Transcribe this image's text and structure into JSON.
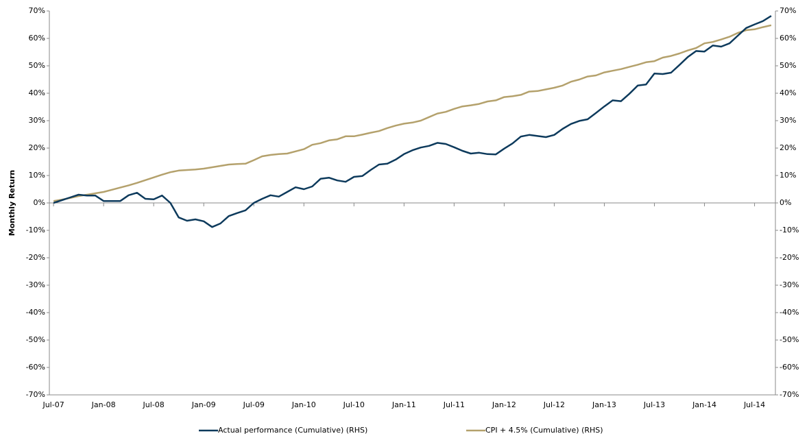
{
  "chart_data": {
    "type": "line",
    "y_label": "Monthly Return",
    "categories": [
      "Jul-07",
      null,
      null,
      null,
      null,
      null,
      "Jan-08",
      null,
      null,
      null,
      null,
      null,
      "Jul-08",
      null,
      null,
      null,
      null,
      null,
      "Jan-09",
      null,
      null,
      null,
      null,
      null,
      "Jul-09",
      null,
      null,
      null,
      null,
      null,
      "Jan-10",
      null,
      null,
      null,
      null,
      null,
      "Jul-10",
      null,
      null,
      null,
      null,
      null,
      "Jan-11",
      null,
      null,
      null,
      null,
      null,
      "Jul-11",
      null,
      null,
      null,
      null,
      null,
      "Jan-12",
      null,
      null,
      null,
      null,
      null,
      "Jul-12",
      null,
      null,
      null,
      null,
      null,
      "Jan-13",
      null,
      null,
      null,
      null,
      null,
      "Jul-13",
      null,
      null,
      null,
      null,
      null,
      "Jan-14",
      null,
      null,
      null,
      null,
      null,
      "Jul-14",
      null,
      null
    ],
    "series": [
      {
        "name": "Actual performance (Cumulative) (RHS)",
        "color": "#0d3a5c",
        "axis": "y2",
        "values": [
          0,
          1,
          2,
          3,
          2.7,
          2.7,
          0.7,
          0.7,
          0.7,
          2.8,
          3.7,
          1.5,
          1.3,
          2.7,
          0,
          -5.3,
          -6.5,
          -6,
          -6.7,
          -8.8,
          -7.5,
          -4.8,
          -3.7,
          -2.7,
          0,
          1.5,
          2.8,
          2.3,
          4,
          5.7,
          5,
          6,
          8.8,
          9.2,
          8.2,
          7.7,
          9.5,
          9.8,
          12,
          14,
          14.3,
          15.8,
          17.8,
          19.2,
          20.2,
          20.8,
          21.9,
          21.5,
          20.3,
          19,
          18,
          18.3,
          17.8,
          17.7,
          19.8,
          21.7,
          24.2,
          24.8,
          24.4,
          24,
          24.8,
          27,
          28.8,
          29.9,
          30.5,
          32.8,
          35.2,
          37.4,
          37.1,
          39.8,
          42.8,
          43.2,
          47.2,
          47,
          47.5,
          50.3,
          53.2,
          55.4,
          55.2,
          57.4,
          57,
          58.2,
          61,
          63.8,
          65.1,
          66.3,
          68.2
        ]
      },
      {
        "name": "CPI + 4.5% (Cumulative) (RHS)",
        "color": "#b4a16c",
        "axis": "y2",
        "values": [
          0.7,
          1.2,
          1.8,
          2.5,
          3,
          3.5,
          4,
          4.8,
          5.6,
          6.4,
          7.3,
          8.3,
          9.3,
          10.3,
          11.2,
          11.8,
          12,
          12.2,
          12.5,
          13,
          13.5,
          14,
          14.2,
          14.3,
          15.6,
          17,
          17.5,
          17.8,
          18,
          18.8,
          19.6,
          21.2,
          21.8,
          22.8,
          23.2,
          24.3,
          24.3,
          24.9,
          25.6,
          26.2,
          27.3,
          28.2,
          28.9,
          29.3,
          30,
          31.3,
          32.6,
          33.2,
          34.3,
          35.2,
          35.6,
          36.1,
          37,
          37.4,
          38.6,
          38.9,
          39.4,
          40.6,
          40.8,
          41.4,
          42,
          42.8,
          44.2,
          45,
          46.1,
          46.5,
          47.6,
          48.2,
          48.8,
          49.6,
          50.4,
          51.3,
          51.7,
          53,
          53.6,
          54.5,
          55.6,
          56.5,
          58.2,
          58.7,
          59.6,
          60.6,
          62,
          63,
          63.3,
          64.1,
          64.8
        ]
      }
    ],
    "ylim": [
      -70,
      70
    ],
    "yticks": [
      {
        "value": 70,
        "label": "70%"
      },
      {
        "value": 60,
        "label": "60%"
      },
      {
        "value": 50,
        "label": "50%"
      },
      {
        "value": 40,
        "label": "40%"
      },
      {
        "value": 30,
        "label": "30%"
      },
      {
        "value": 20,
        "label": "20%"
      },
      {
        "value": 10,
        "label": "10%"
      },
      {
        "value": 0,
        "label": "0%"
      },
      {
        "value": -10,
        "label": "-10%"
      },
      {
        "value": -20,
        "label": "-20%"
      },
      {
        "value": -30,
        "label": "-30%"
      },
      {
        "value": -40,
        "label": "-40%"
      },
      {
        "value": -50,
        "label": "-50%"
      },
      {
        "value": -60,
        "label": "-60%"
      },
      {
        "value": -70,
        "label": "-70%"
      }
    ],
    "y2lim": [
      -70,
      70
    ],
    "y2ticks": [
      {
        "value": 70,
        "label": "70%"
      },
      {
        "value": 60,
        "label": "60%"
      },
      {
        "value": 50,
        "label": "50%"
      },
      {
        "value": 40,
        "label": "40%"
      },
      {
        "value": 30,
        "label": "30%"
      },
      {
        "value": 20,
        "label": "20%"
      },
      {
        "value": 10,
        "label": "10%"
      },
      {
        "value": 0,
        "label": "0%"
      },
      {
        "value": -10,
        "label": "-10%"
      },
      {
        "value": -20,
        "label": "-20%"
      },
      {
        "value": -30,
        "label": "-30%"
      },
      {
        "value": -40,
        "label": "-40%"
      },
      {
        "value": -50,
        "label": "-50%"
      },
      {
        "value": -60,
        "label": "-60%"
      },
      {
        "value": -70,
        "label": "-70%"
      }
    ],
    "grid": false,
    "legend": "bottom"
  }
}
